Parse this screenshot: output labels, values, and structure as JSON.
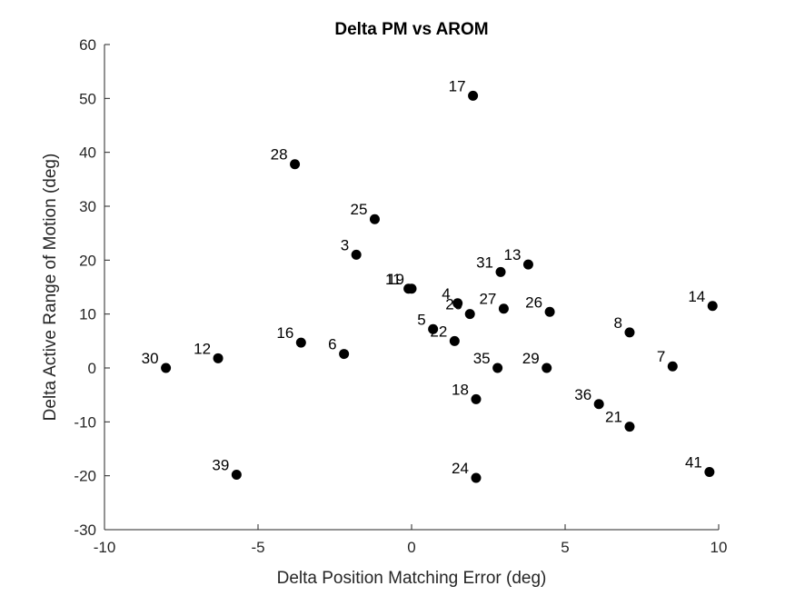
{
  "chart_data": {
    "type": "scatter",
    "title": "Delta PM vs AROM",
    "xlabel": "Delta Position Matching Error (deg)",
    "ylabel": "Delta Active Range of Motion (deg)",
    "xlim": [
      -10,
      10
    ],
    "ylim": [
      -30,
      60
    ],
    "xticks": [
      -10,
      -5,
      0,
      5,
      10
    ],
    "yticks": [
      -30,
      -20,
      -10,
      0,
      10,
      20,
      30,
      40,
      50,
      60
    ],
    "grid": false,
    "marker_color": "#000000",
    "points": [
      {
        "label": "17",
        "x": 2.0,
        "y": 50.5
      },
      {
        "label": "28",
        "x": -3.8,
        "y": 37.8
      },
      {
        "label": "25",
        "x": -1.2,
        "y": 27.6
      },
      {
        "label": "3",
        "x": -1.8,
        "y": 21.0
      },
      {
        "label": "31",
        "x": 2.9,
        "y": 17.8
      },
      {
        "label": "13",
        "x": 3.8,
        "y": 19.2
      },
      {
        "label": "11",
        "x": -0.1,
        "y": 14.7
      },
      {
        "label": "19",
        "x": 0.0,
        "y": 14.7
      },
      {
        "label": "4",
        "x": 1.5,
        "y": 12.0
      },
      {
        "label": "20",
        "x": 1.9,
        "y": 10.0
      },
      {
        "label": "27",
        "x": 3.0,
        "y": 11.0
      },
      {
        "label": "26",
        "x": 4.5,
        "y": 10.4
      },
      {
        "label": "14",
        "x": 9.8,
        "y": 11.5
      },
      {
        "label": "8",
        "x": 7.1,
        "y": 6.6
      },
      {
        "label": "5",
        "x": 0.7,
        "y": 7.2
      },
      {
        "label": "22",
        "x": 1.4,
        "y": 5.0
      },
      {
        "label": "16",
        "x": -3.6,
        "y": 4.7
      },
      {
        "label": "6",
        "x": -2.2,
        "y": 2.6
      },
      {
        "label": "12",
        "x": -6.3,
        "y": 1.8
      },
      {
        "label": "30",
        "x": -8.0,
        "y": 0.0
      },
      {
        "label": "35",
        "x": 2.8,
        "y": 0.0
      },
      {
        "label": "29",
        "x": 4.4,
        "y": 0.0
      },
      {
        "label": "7",
        "x": 8.5,
        "y": 0.3
      },
      {
        "label": "18",
        "x": 2.1,
        "y": -5.8
      },
      {
        "label": "36",
        "x": 6.1,
        "y": -6.7
      },
      {
        "label": "21",
        "x": 7.1,
        "y": -10.9
      },
      {
        "label": "39",
        "x": -5.7,
        "y": -19.8
      },
      {
        "label": "24",
        "x": 2.1,
        "y": -20.4
      },
      {
        "label": "41",
        "x": 9.7,
        "y": -19.3
      }
    ]
  }
}
